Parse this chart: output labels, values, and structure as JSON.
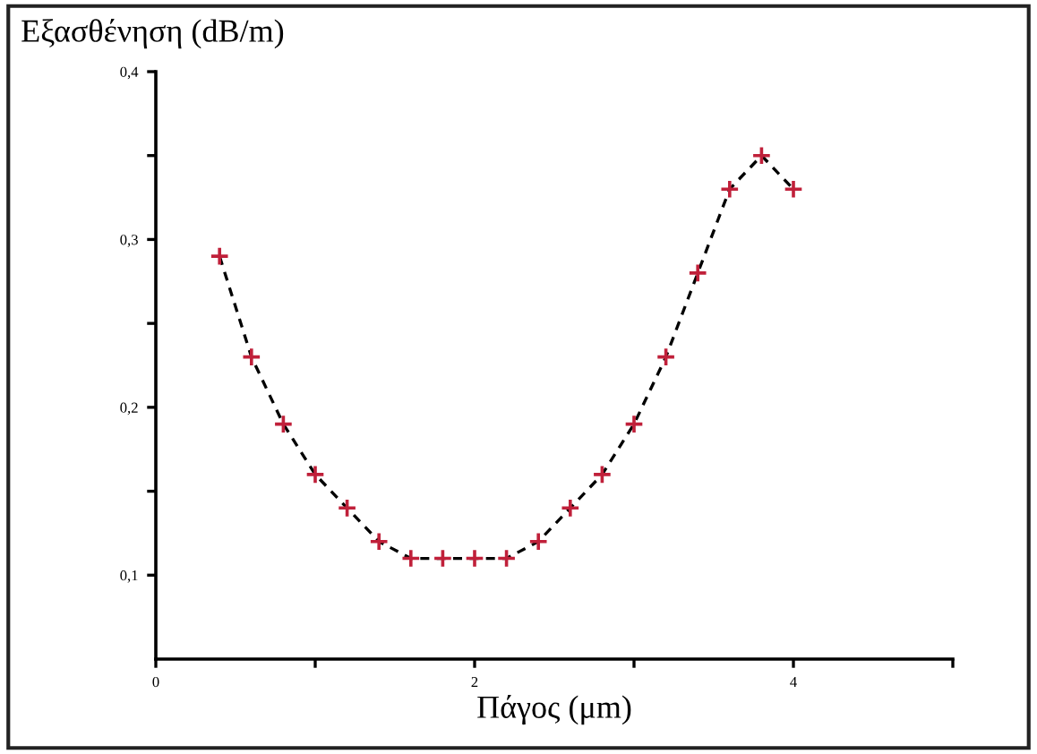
{
  "chart_data": {
    "type": "scatter",
    "ylabel": "Εξασθένηση (dB/m)",
    "xlabel": "Πάγος (μm)",
    "x": [
      0.4,
      0.6,
      0.8,
      1.0,
      1.2,
      1.4,
      1.6,
      1.8,
      2.0,
      2.2,
      2.4,
      2.6,
      2.8,
      3.0,
      3.2,
      3.4,
      3.6,
      3.8,
      4.0
    ],
    "series": [
      {
        "type": "line",
        "color": "#000000",
        "line_style": "dashed",
        "marker": "none",
        "values": [
          0.29,
          0.23,
          0.19,
          0.16,
          0.14,
          0.12,
          0.11,
          0.11,
          0.11,
          0.11,
          0.12,
          0.14,
          0.16,
          0.19,
          0.23,
          0.28,
          0.33,
          0.35,
          0.33
        ]
      },
      {
        "color": "#c0203a",
        "marker": "cross",
        "values": [
          0.29,
          0.23,
          0.19,
          0.16,
          0.14,
          0.12,
          0.11,
          0.11,
          0.11,
          0.11,
          0.12,
          0.14,
          0.16,
          0.19,
          0.23,
          0.28,
          0.33,
          0.35,
          0.33
        ]
      }
    ],
    "xlim": [
      0,
      5
    ],
    "xticks": [
      0,
      {
        "value": 1,
        "label": null
      },
      2,
      {
        "value": 3,
        "label": null
      },
      4,
      {
        "value": 5,
        "label": null
      }
    ],
    "ylim": [
      0.05,
      0.4
    ],
    "yticks": [
      {
        "value": 0.1,
        "label": "0,1"
      },
      {
        "value": 0.15,
        "label": null
      },
      {
        "value": 0.2,
        "label": "0,2"
      },
      {
        "value": 0.25,
        "label": null
      },
      {
        "value": 0.3,
        "label": "0,3"
      },
      {
        "value": 0.35,
        "label": null
      },
      {
        "value": 0.4,
        "label": "0,4"
      }
    ],
    "grid": false,
    "legend": false
  }
}
